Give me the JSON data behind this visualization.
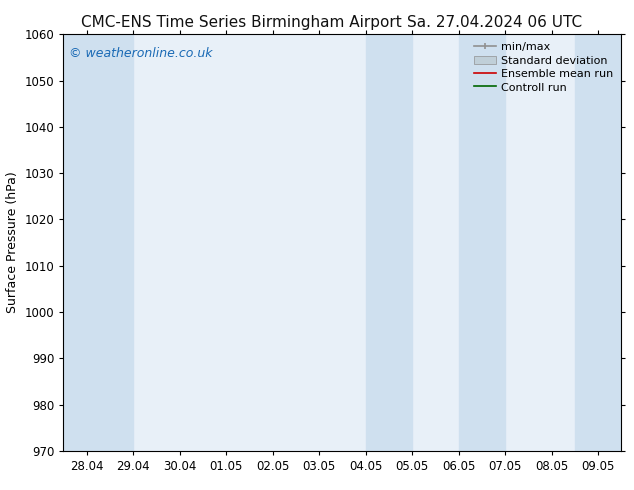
{
  "title_left": "CMC-ENS Time Series Birmingham Airport",
  "title_right": "Sa. 27.04.2024 06 UTC",
  "ylabel": "Surface Pressure (hPa)",
  "ylim": [
    970,
    1060
  ],
  "yticks": [
    970,
    980,
    990,
    1000,
    1010,
    1020,
    1030,
    1040,
    1050,
    1060
  ],
  "x_labels": [
    "28.04",
    "29.04",
    "30.04",
    "01.05",
    "02.05",
    "03.05",
    "04.05",
    "05.05",
    "06.05",
    "07.05",
    "08.05",
    "09.05"
  ],
  "x_positions": [
    0,
    1,
    2,
    3,
    4,
    5,
    6,
    7,
    8,
    9,
    10,
    11
  ],
  "xlim": [
    -0.5,
    11.5
  ],
  "shaded_bands": [
    {
      "x_start": -0.5,
      "x_end": 1.0
    },
    {
      "x_start": 6.0,
      "x_end": 7.0
    },
    {
      "x_start": 8.0,
      "x_end": 9.0
    },
    {
      "x_start": 10.5,
      "x_end": 11.5
    }
  ],
  "plot_bg_color": "#e8f0f8",
  "shade_color": "#cfe0ef",
  "background_color": "#ffffff",
  "watermark_text": "© weatheronline.co.uk",
  "watermark_color": "#1a6ab5",
  "legend_entries": [
    {
      "label": "min/max",
      "color": "#a0a0a0",
      "type": "errorbar"
    },
    {
      "label": "Standard deviation",
      "color": "#c0cfe0",
      "type": "fill"
    },
    {
      "label": "Ensemble mean run",
      "color": "#cc0000",
      "type": "line"
    },
    {
      "label": "Controll run",
      "color": "#006600",
      "type": "line"
    }
  ],
  "title_fontsize": 11,
  "axis_label_fontsize": 9,
  "tick_fontsize": 8.5,
  "watermark_fontsize": 9,
  "legend_fontsize": 8
}
